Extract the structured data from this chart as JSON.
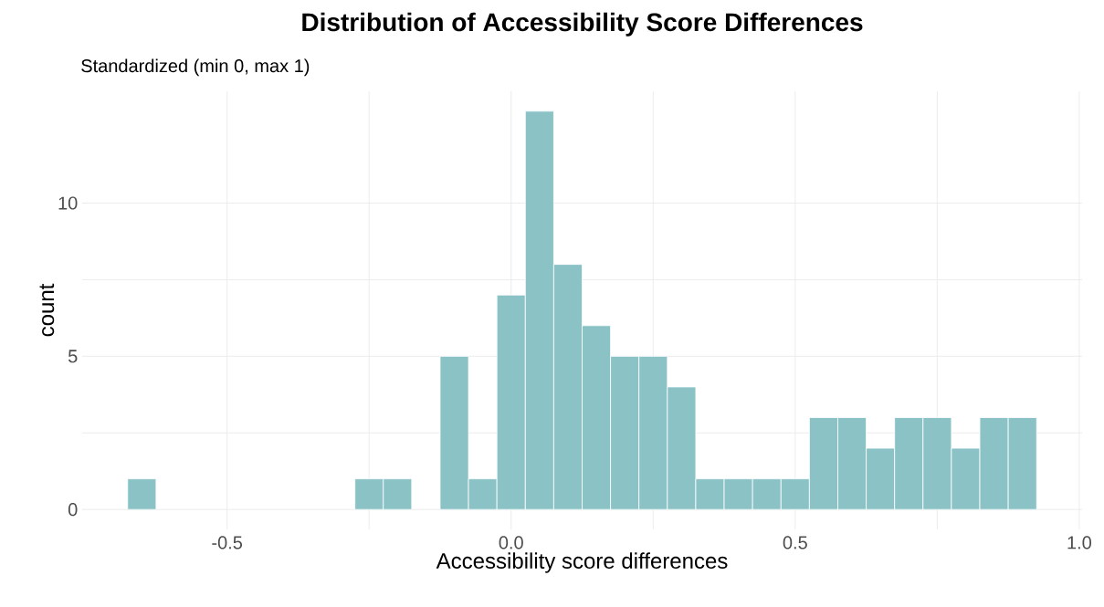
{
  "chart_data": {
    "type": "histogram",
    "title": "Distribution of Accessibility Score Differences",
    "subtitle": "Standardized (min 0, max 1)",
    "xlabel": "Accessibility score differences",
    "ylabel": "count",
    "bins": [
      -0.675,
      -0.625,
      -0.575,
      -0.525,
      -0.475,
      -0.425,
      -0.375,
      -0.325,
      -0.275,
      -0.225,
      -0.175,
      -0.125,
      -0.075,
      -0.025,
      0.025,
      0.075,
      0.125,
      0.175,
      0.225,
      0.275,
      0.325,
      0.375,
      0.425,
      0.475,
      0.525,
      0.575,
      0.625,
      0.675,
      0.725,
      0.775,
      0.825,
      0.875,
      0.925
    ],
    "values": [
      1,
      0,
      0,
      0,
      0,
      0,
      0,
      0,
      1,
      1,
      0,
      5,
      1,
      7,
      13,
      8,
      6,
      5,
      5,
      4,
      1,
      1,
      1,
      1,
      3,
      3,
      2,
      3,
      3,
      2,
      3,
      3
    ],
    "color": "#8ac2c6",
    "xlim": [
      -0.755,
      1.005
    ],
    "ylim": [
      -0.65,
      13.65
    ],
    "xticks": [
      {
        "value": -0.5,
        "label": "-0.5"
      },
      {
        "value": 0,
        "label": "0.0"
      },
      {
        "value": 0.5,
        "label": "0.5"
      },
      {
        "value": 1,
        "label": "1.0"
      }
    ],
    "yticks": [
      0,
      5,
      10
    ],
    "grid": true
  }
}
